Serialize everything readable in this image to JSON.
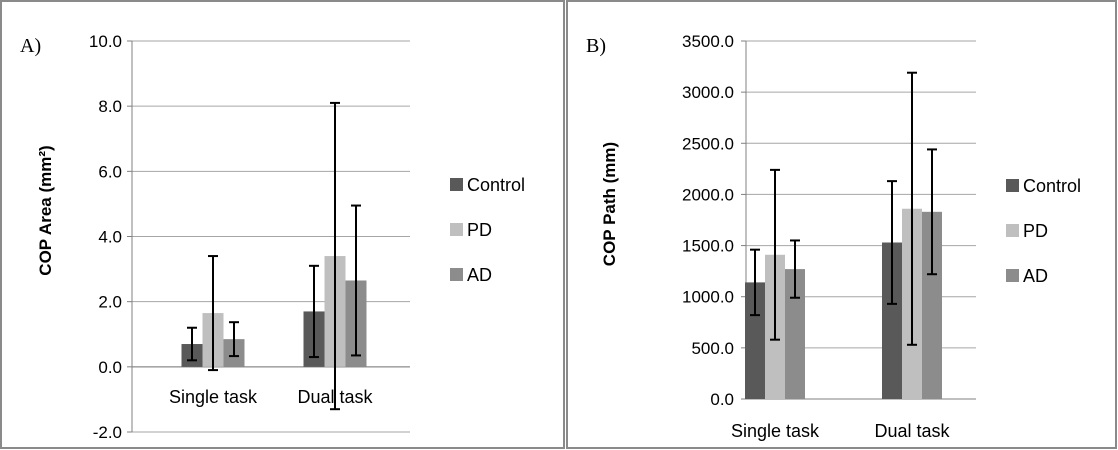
{
  "chart_data": [
    {
      "type": "bar",
      "panel_label": "A)",
      "title": "",
      "xlabel": "",
      "ylabel": "COP Area  (mm²)",
      "categories": [
        "Single task",
        "Dual task"
      ],
      "ylim": [
        -2.0,
        10.0
      ],
      "yticks": [
        "10.0",
        "8.0",
        "6.0",
        "4.0",
        "2.0",
        "0.0",
        "-2.0"
      ],
      "grid": true,
      "legend_position": "right",
      "series": [
        {
          "name": "Control",
          "color": "#595959",
          "values": [
            0.7,
            1.7
          ],
          "error": [
            0.5,
            1.4
          ]
        },
        {
          "name": "PD",
          "color": "#bfbfbf",
          "values": [
            1.65,
            3.4
          ],
          "error": [
            1.75,
            4.7
          ]
        },
        {
          "name": "AD",
          "color": "#8c8c8c",
          "values": [
            0.85,
            2.65
          ],
          "error": [
            0.52,
            2.3
          ]
        }
      ]
    },
    {
      "type": "bar",
      "panel_label": "B)",
      "title": "",
      "xlabel": "",
      "ylabel": "COP Path (mm)",
      "categories": [
        "Single task",
        "Dual task"
      ],
      "ylim": [
        0,
        3500.0
      ],
      "yticks": [
        "3500.0",
        "3000.0",
        "2500.0",
        "2000.0",
        "1500.0",
        "1000.0",
        "500.0",
        "0.0"
      ],
      "grid": true,
      "legend_position": "right",
      "series": [
        {
          "name": "Control",
          "color": "#595959",
          "values": [
            1140,
            1530
          ],
          "error": [
            320,
            600
          ]
        },
        {
          "name": "PD",
          "color": "#bfbfbf",
          "values": [
            1410,
            1860
          ],
          "error": [
            830,
            1330
          ]
        },
        {
          "name": "AD",
          "color": "#8c8c8c",
          "values": [
            1270,
            1830
          ],
          "error": [
            280,
            610
          ]
        }
      ]
    }
  ]
}
